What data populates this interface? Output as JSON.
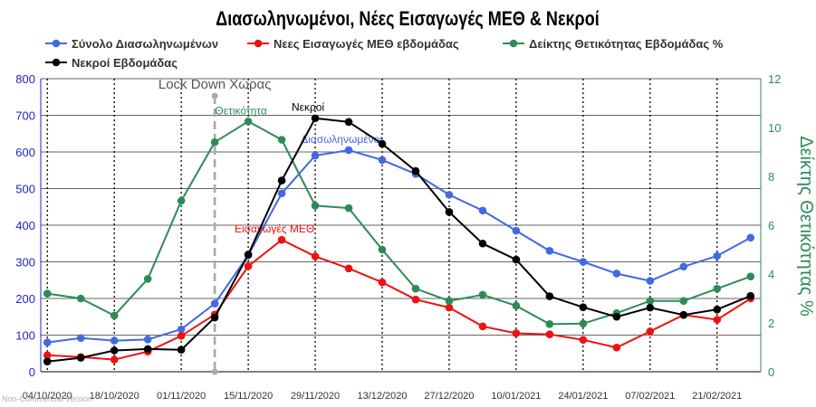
{
  "chart_data": {
    "type": "line",
    "title": "Διασωληνωμένοι, Νέες Εισαγωγές ΜΕΘ & Νεκροί",
    "title_color": "#0b20a8",
    "watermark": "Non-Commercial Version",
    "x": [
      "04/10/2020",
      "11/10/2020",
      "18/10/2020",
      "25/10/2020",
      "01/11/2020",
      "08/11/2020",
      "15/11/2020",
      "22/11/2020",
      "29/11/2020",
      "06/12/2020",
      "13/12/2020",
      "20/12/2020",
      "27/12/2020",
      "03/01/2021",
      "10/01/2021",
      "17/01/2021",
      "24/01/2021",
      "31/01/2021",
      "07/02/2021",
      "14/02/2021",
      "21/02/2021",
      "28/02/2021"
    ],
    "x_tick_labels": [
      "04/10/2020",
      "18/10/2020",
      "01/11/2020",
      "15/11/2020",
      "29/11/2020",
      "13/12/2020",
      "27/12/2020",
      "10/01/2021",
      "24/01/2021",
      "07/02/2021",
      "21/02/2021"
    ],
    "y_left": {
      "ylim": [
        0,
        800
      ],
      "ticks": [
        "0",
        "100",
        "200",
        "300",
        "400",
        "500",
        "600",
        "700",
        "800"
      ],
      "color": "#2222cc"
    },
    "y_right": {
      "ylim": [
        0,
        12
      ],
      "ticks": [
        "0",
        "2",
        "4",
        "6",
        "8",
        "10",
        "12"
      ],
      "label": "Δείκτης Θετικότητας %",
      "color": "#2e8b57"
    },
    "grid": true,
    "legend_position": "top",
    "series": [
      {
        "name": "Σύνολο Διασωληνωμένων",
        "color": "#4169e1",
        "axis": "left",
        "values": [
          80,
          92,
          85,
          88,
          116,
          186,
          318,
          487,
          590,
          605,
          578,
          540,
          483,
          440,
          385,
          330,
          300,
          268,
          248,
          287,
          316,
          366
        ],
        "label": {
          "text": "Διασωληνωμένοι",
          "index": 9
        }
      },
      {
        "name": "Νεες Εισαγωγές ΜΕΘ εβδομάδας",
        "color": "#ee1111",
        "axis": "left",
        "values": [
          45,
          40,
          33,
          55,
          98,
          156,
          288,
          360,
          315,
          282,
          244,
          197,
          175,
          124,
          105,
          102,
          87,
          66,
          110,
          155,
          142,
          200
        ],
        "label": {
          "text": "Εισαγωγές ΜΕΘ",
          "index": 7
        }
      },
      {
        "name": "Δείκτης Θετικότητας Εβδομάδας %",
        "color": "#2e8b57",
        "axis": "right",
        "values": [
          3.2,
          3.0,
          2.3,
          3.8,
          7.0,
          9.4,
          10.25,
          9.5,
          6.8,
          6.7,
          5.0,
          3.4,
          2.9,
          3.15,
          2.7,
          1.95,
          1.97,
          2.4,
          2.9,
          2.9,
          3.4,
          3.9
        ],
        "label": {
          "text": "Θετικότητα",
          "index": 6
        }
      },
      {
        "name": "Νεκροί Εβδομάδας",
        "color": "#000000",
        "axis": "left",
        "values": [
          28,
          38,
          58,
          62,
          60,
          148,
          320,
          522,
          692,
          682,
          622,
          548,
          436,
          350,
          306,
          206,
          176,
          150,
          175,
          155,
          170,
          207
        ],
        "label": {
          "text": "Νεκροί",
          "index": 8
        }
      }
    ],
    "annotations": [
      {
        "text": "Lock Down Χώρας",
        "x": "08/11/2020",
        "style": "dashed-vertical-line",
        "color": "#aaaaaa"
      }
    ]
  }
}
